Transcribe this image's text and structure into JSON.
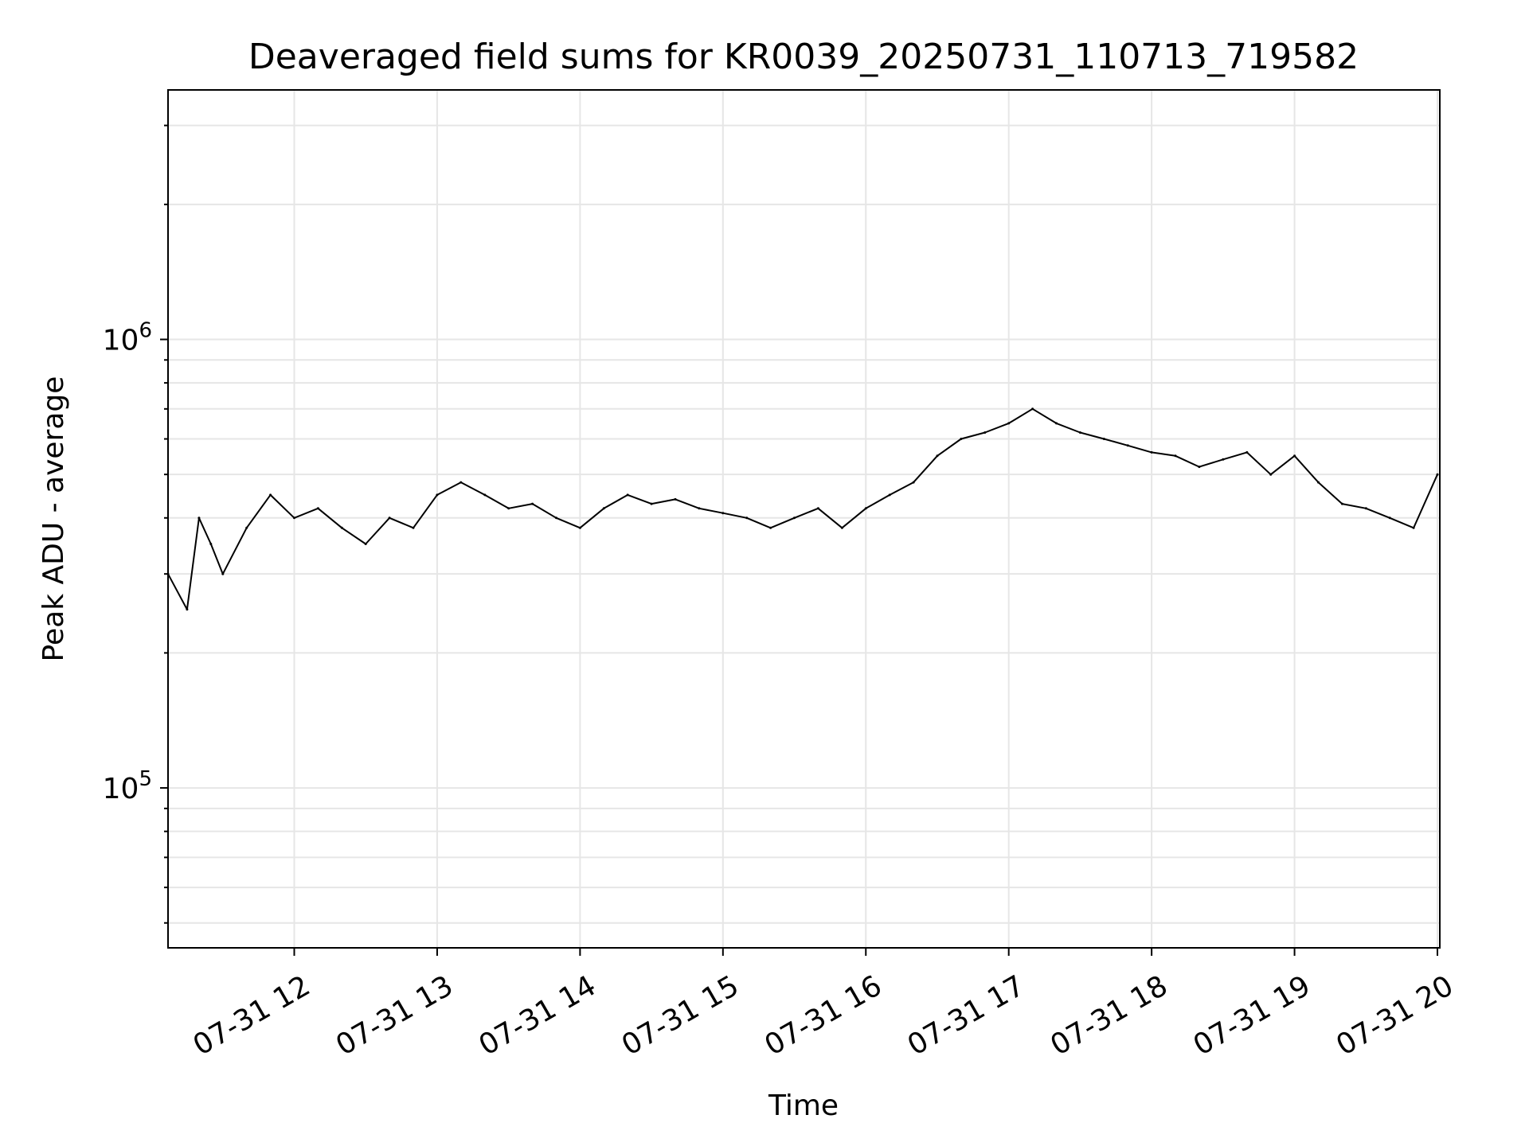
{
  "chart_data": {
    "type": "line",
    "title": "Deaveraged field sums for KR0039_20250731_110713_719582",
    "xlabel": "Time",
    "ylabel": "Peak ADU - average",
    "x_ticks": [
      "07-31 12",
      "07-31 13",
      "07-31 14",
      "07-31 15",
      "07-31 16",
      "07-31 17",
      "07-31 18",
      "07-31 19",
      "07-31 20"
    ],
    "y_ticks": [
      {
        "value": 100000,
        "base": "10",
        "exp": "5"
      },
      {
        "value": 1000000,
        "base": "10",
        "exp": "6"
      }
    ],
    "xlim": [
      "2025-07-31 11:07",
      "2025-07-31 20:01"
    ],
    "ylim": [
      44000,
      3600000
    ],
    "yscale": "log",
    "grid": true,
    "line_color": "#000000",
    "grid_color": "#e6e6e6",
    "series": [
      {
        "x": [
          "2025-07-31 11:07",
          "2025-07-31 11:15",
          "2025-07-31 11:20",
          "2025-07-31 11:25",
          "2025-07-31 11:30",
          "2025-07-31 11:40",
          "2025-07-31 11:50",
          "2025-07-31 12:00",
          "2025-07-31 12:10",
          "2025-07-31 12:20",
          "2025-07-31 12:30",
          "2025-07-31 12:40",
          "2025-07-31 12:50",
          "2025-07-31 13:00",
          "2025-07-31 13:10",
          "2025-07-31 13:20",
          "2025-07-31 13:30",
          "2025-07-31 13:40",
          "2025-07-31 13:50",
          "2025-07-31 14:00",
          "2025-07-31 14:10",
          "2025-07-31 14:20",
          "2025-07-31 14:30",
          "2025-07-31 14:40",
          "2025-07-31 14:50",
          "2025-07-31 15:00",
          "2025-07-31 15:10",
          "2025-07-31 15:20",
          "2025-07-31 15:30",
          "2025-07-31 15:40",
          "2025-07-31 15:50",
          "2025-07-31 16:00",
          "2025-07-31 16:10",
          "2025-07-31 16:20",
          "2025-07-31 16:30",
          "2025-07-31 16:40",
          "2025-07-31 16:50",
          "2025-07-31 17:00",
          "2025-07-31 17:10",
          "2025-07-31 17:20",
          "2025-07-31 17:30",
          "2025-07-31 17:40",
          "2025-07-31 17:50",
          "2025-07-31 18:00",
          "2025-07-31 18:10",
          "2025-07-31 18:20",
          "2025-07-31 18:30",
          "2025-07-31 18:40",
          "2025-07-31 18:50",
          "2025-07-31 19:00",
          "2025-07-31 19:10",
          "2025-07-31 19:20",
          "2025-07-31 19:30",
          "2025-07-31 19:40",
          "2025-07-31 19:50",
          "2025-07-31 20:00"
        ],
        "values": [
          300000,
          250000,
          400000,
          350000,
          300000,
          380000,
          450000,
          400000,
          420000,
          380000,
          350000,
          400000,
          380000,
          450000,
          480000,
          450000,
          420000,
          430000,
          400000,
          380000,
          420000,
          450000,
          430000,
          440000,
          420000,
          410000,
          400000,
          380000,
          400000,
          420000,
          380000,
          420000,
          450000,
          480000,
          550000,
          600000,
          620000,
          650000,
          700000,
          650000,
          620000,
          600000,
          580000,
          560000,
          550000,
          520000,
          540000,
          560000,
          500000,
          550000,
          480000,
          430000,
          420000,
          400000,
          380000,
          500000
        ]
      }
    ]
  }
}
